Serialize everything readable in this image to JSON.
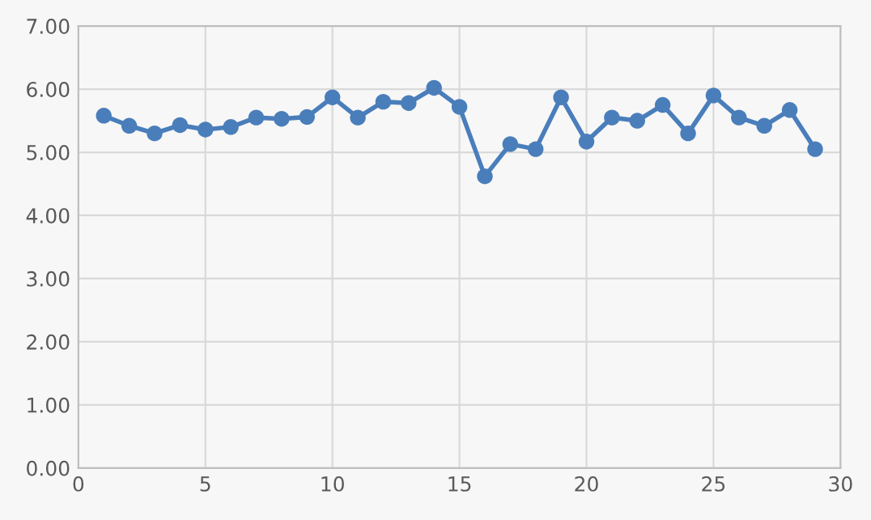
{
  "chart_data": {
    "type": "line",
    "x": [
      1,
      2,
      3,
      4,
      5,
      6,
      7,
      8,
      9,
      10,
      11,
      12,
      13,
      14,
      15,
      16,
      17,
      18,
      19,
      20,
      21,
      22,
      23,
      24,
      25,
      26,
      27,
      28,
      29
    ],
    "series": [
      {
        "color": "#4a7ebb",
        "values": [
          5.58,
          5.42,
          5.3,
          5.43,
          5.36,
          5.4,
          5.55,
          5.53,
          5.56,
          5.87,
          5.55,
          5.8,
          5.78,
          6.02,
          5.72,
          4.62,
          5.13,
          5.05,
          5.87,
          5.17,
          5.55,
          5.5,
          5.75,
          5.3,
          5.9,
          5.55,
          5.42,
          5.67,
          5.05
        ]
      }
    ],
    "xlim": [
      0,
      30
    ],
    "xticks": [
      0,
      5,
      10,
      15,
      20,
      25,
      30
    ],
    "ylim": [
      0,
      7
    ],
    "yticks": [
      {
        "value": 0,
        "label": "0.00"
      },
      {
        "value": 1,
        "label": "1.00"
      },
      {
        "value": 2,
        "label": "2.00"
      },
      {
        "value": 3,
        "label": "3.00"
      },
      {
        "value": 4,
        "label": "4.00"
      },
      {
        "value": 5,
        "label": "5.00"
      },
      {
        "value": 6,
        "label": "6.00"
      },
      {
        "value": 7,
        "label": "7.00"
      }
    ],
    "grid": true,
    "marker": "circle",
    "line_style": "solid"
  }
}
